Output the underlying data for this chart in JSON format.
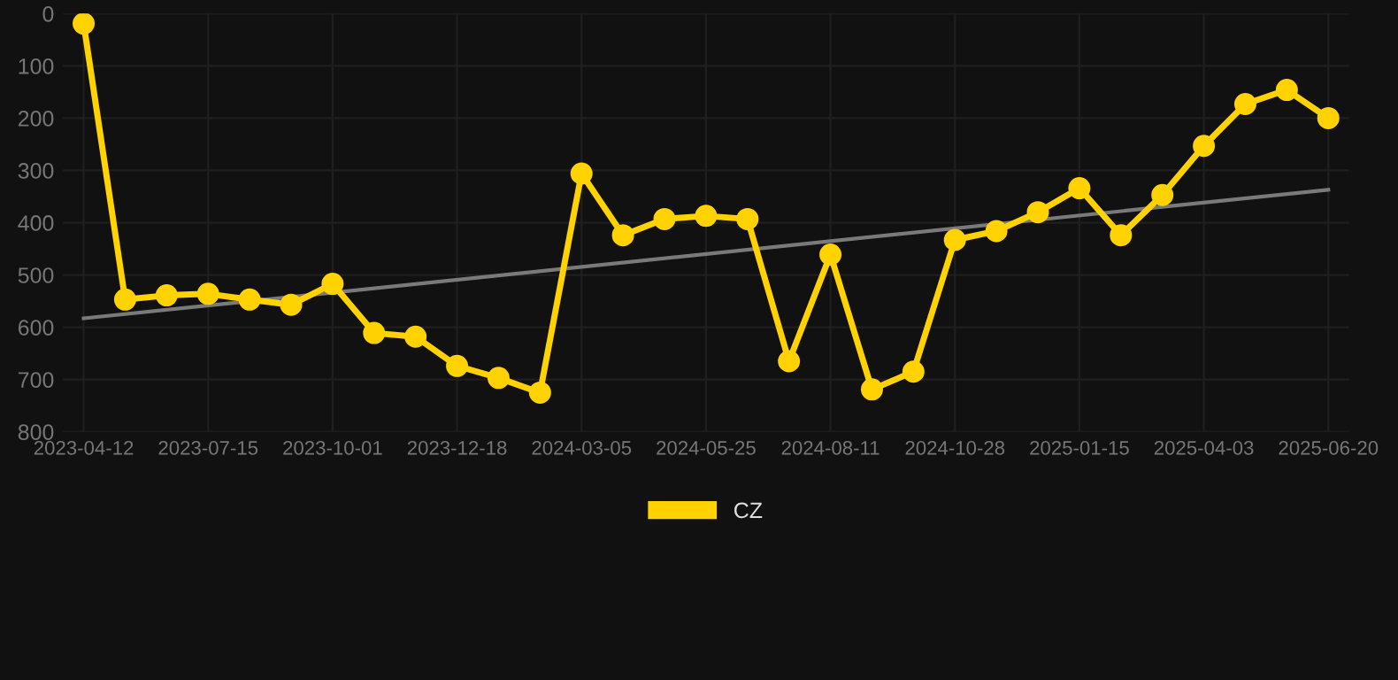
{
  "chart_data": {
    "type": "line",
    "categories": [
      "2023-04-12",
      null,
      null,
      "2023-07-15",
      null,
      null,
      "2023-10-01",
      null,
      null,
      "2023-12-18",
      null,
      null,
      "2024-03-05",
      null,
      null,
      "2024-05-25",
      null,
      null,
      "2024-08-11",
      null,
      null,
      "2024-10-28",
      null,
      null,
      "2025-01-15",
      null,
      null,
      "2025-04-03",
      null,
      null,
      "2025-06-20"
    ],
    "series": [
      {
        "name": "CZ",
        "color": "#ffd200",
        "marker": "circle",
        "values": [
          19,
          547,
          539,
          536,
          547,
          557,
          517,
          611,
          618,
          674,
          697,
          725,
          306,
          424,
          393,
          387,
          393,
          665,
          461,
          719,
          685,
          433,
          416,
          380,
          334,
          424,
          347,
          253,
          173,
          146,
          200
        ]
      },
      {
        "type": "line",
        "color": "#7a7a7a",
        "marker": "none",
        "values": [
          583,
          null,
          null,
          null,
          null,
          null,
          null,
          null,
          null,
          null,
          null,
          null,
          null,
          null,
          null,
          null,
          null,
          null,
          null,
          null,
          null,
          null,
          null,
          null,
          null,
          null,
          null,
          null,
          null,
          null,
          337
        ]
      }
    ],
    "ylim": [
      800,
      0
    ],
    "yticks": [
      0,
      100,
      200,
      300,
      400,
      500,
      600,
      700,
      800
    ],
    "grid": true,
    "legend": "bottom"
  }
}
